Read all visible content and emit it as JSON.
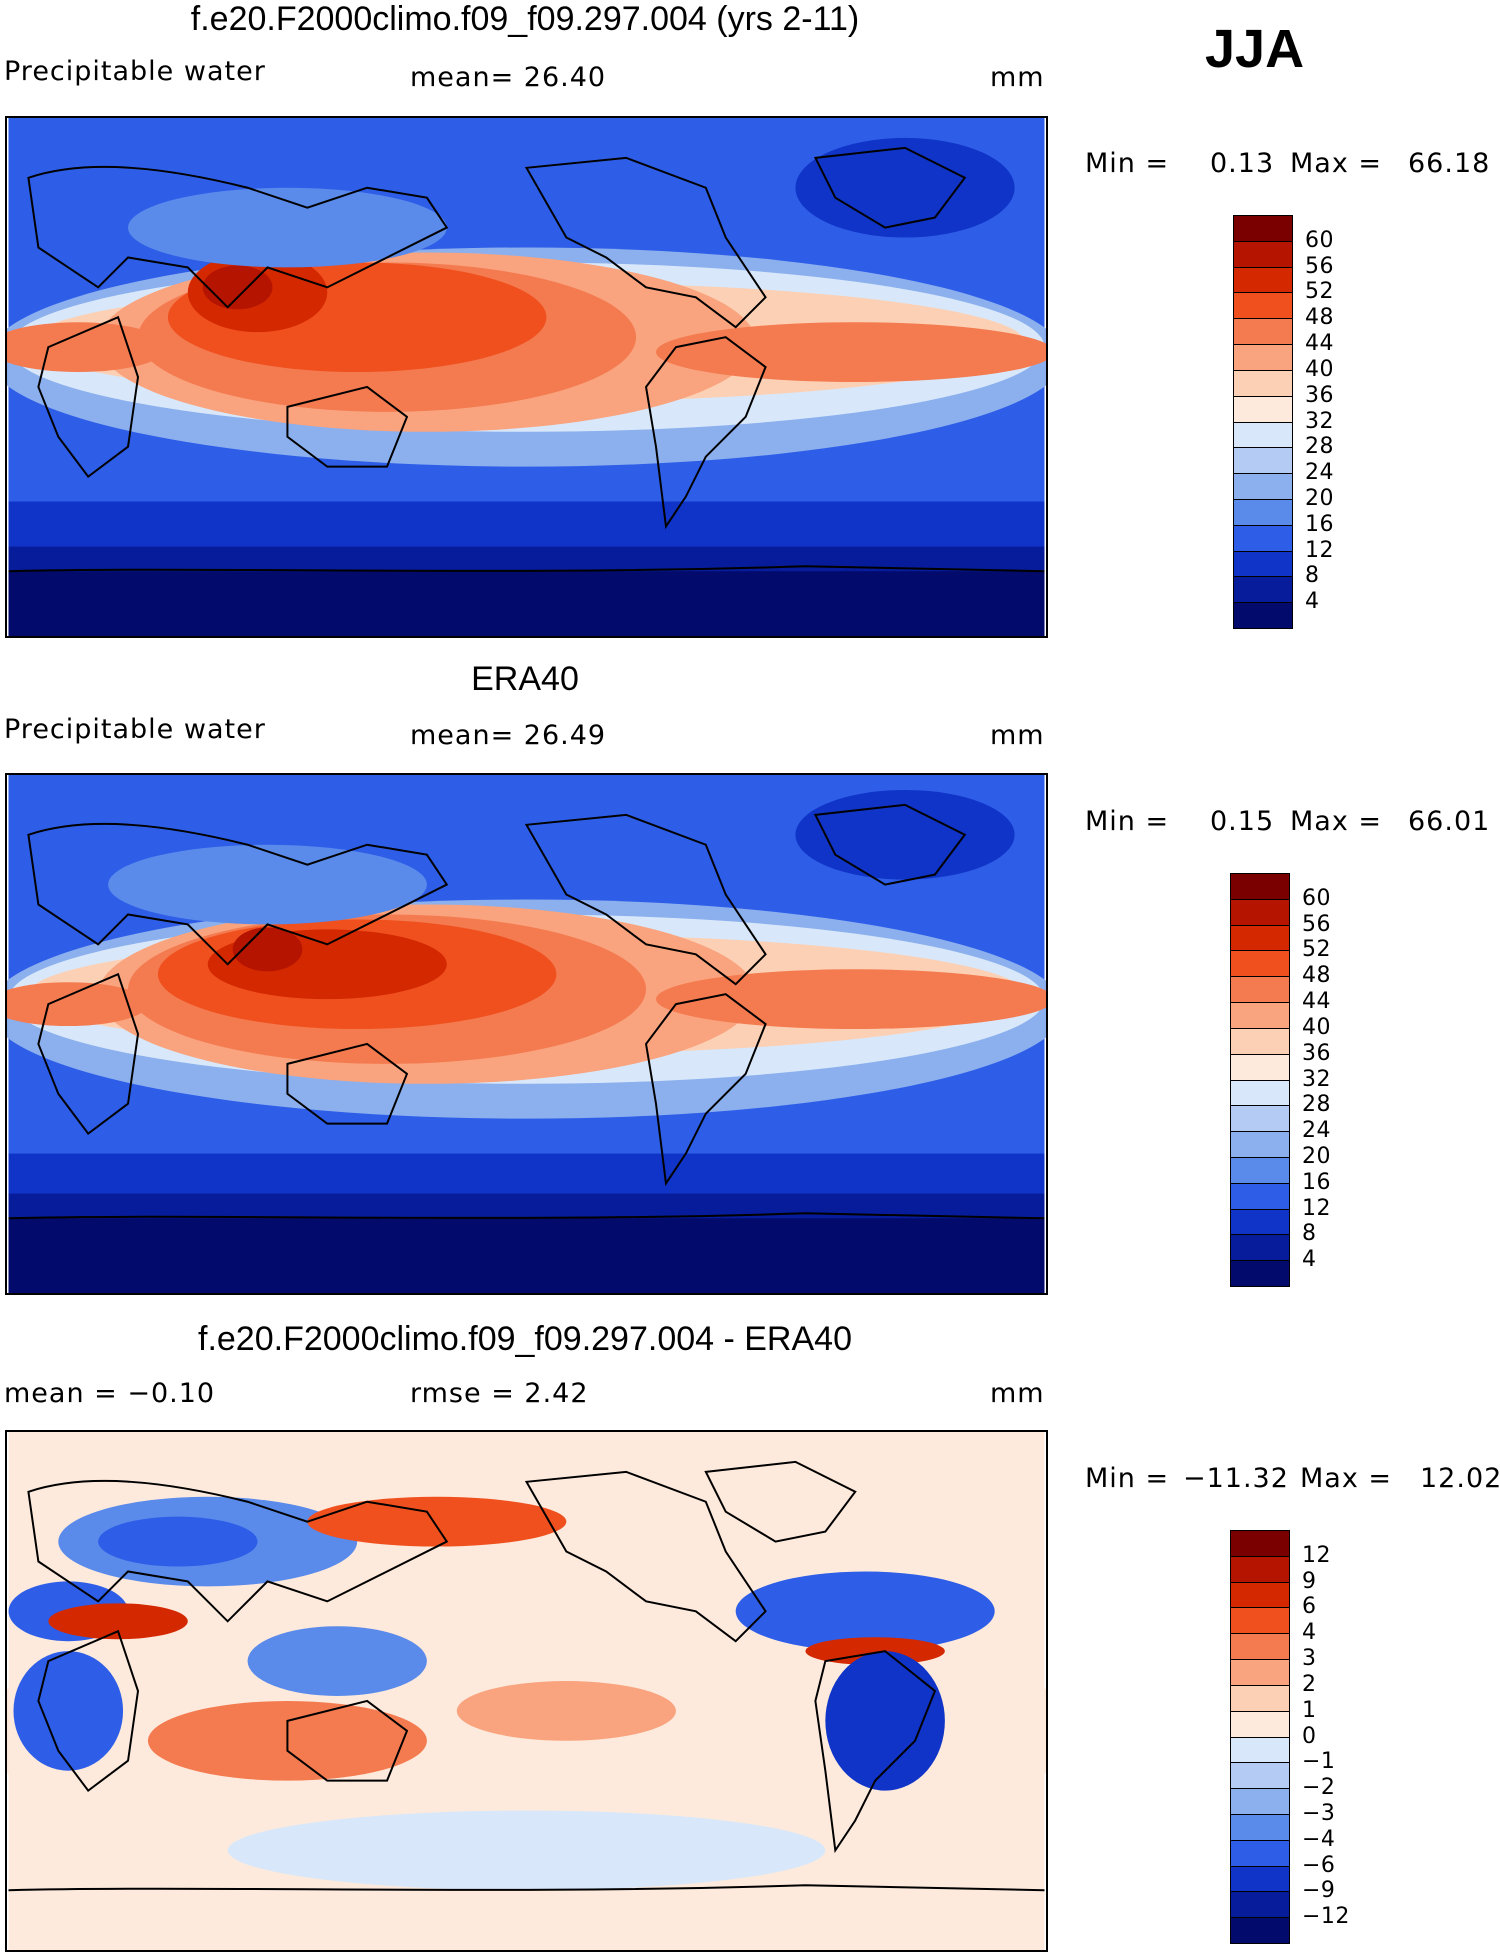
{
  "season": "JJA",
  "units": "mm",
  "panels": [
    {
      "title": "f.e20.F2000climo.f09_f09.297.004 (yrs 2-11)",
      "left_label": "Precipitable water",
      "mid_label": "mean=   26.40",
      "right_label": "mm",
      "min_label": "Min =",
      "min_value": "0.13",
      "max_label": "Max =",
      "max_value": "66.18",
      "colorbar_labels": [
        "60",
        "56",
        "52",
        "48",
        "44",
        "40",
        "36",
        "32",
        "28",
        "24",
        "20",
        "16",
        "12",
        "8",
        "4"
      ],
      "colors": [
        "#7a0000",
        "#b41400",
        "#d42800",
        "#f0501e",
        "#f47a50",
        "#f9a47e",
        "#fcd0b4",
        "#fdeadc",
        "#d8e8fa",
        "#b4ccf4",
        "#8cb0ee",
        "#5a8aea",
        "#2e5ee8",
        "#1034c8",
        "#061c9a",
        "#020a6c"
      ]
    },
    {
      "title": "ERA40",
      "left_label": "Precipitable water",
      "mid_label": "mean=   26.49",
      "right_label": "mm",
      "min_label": "Min =",
      "min_value": "0.15",
      "max_label": "Max =",
      "max_value": "66.01",
      "colorbar_labels": [
        "60",
        "56",
        "52",
        "48",
        "44",
        "40",
        "36",
        "32",
        "28",
        "24",
        "20",
        "16",
        "12",
        "8",
        "4"
      ],
      "colors": [
        "#7a0000",
        "#b41400",
        "#d42800",
        "#f0501e",
        "#f47a50",
        "#f9a47e",
        "#fcd0b4",
        "#fdeadc",
        "#d8e8fa",
        "#b4ccf4",
        "#8cb0ee",
        "#5a8aea",
        "#2e5ee8",
        "#1034c8",
        "#061c9a",
        "#020a6c"
      ]
    },
    {
      "title": "f.e20.F2000climo.f09_f09.297.004 - ERA40",
      "left_label": "mean =   −0.10",
      "mid_label": "rmse =    2.42",
      "right_label": "mm",
      "min_label": "Min =",
      "min_value": "−11.32",
      "max_label": "Max =",
      "max_value": "12.02",
      "colorbar_labels": [
        "12",
        "9",
        "6",
        "4",
        "3",
        "2",
        "1",
        "0",
        "−1",
        "−2",
        "−3",
        "−4",
        "−6",
        "−9",
        "−12"
      ],
      "colors": [
        "#7a0000",
        "#b41400",
        "#d42800",
        "#f0501e",
        "#f47a50",
        "#f9a47e",
        "#fcd0b4",
        "#fdeadc",
        "#d8e8fa",
        "#b4ccf4",
        "#8cb0ee",
        "#5a8aea",
        "#2e5ee8",
        "#1034c8",
        "#061c9a",
        "#020a6c"
      ]
    }
  ]
}
